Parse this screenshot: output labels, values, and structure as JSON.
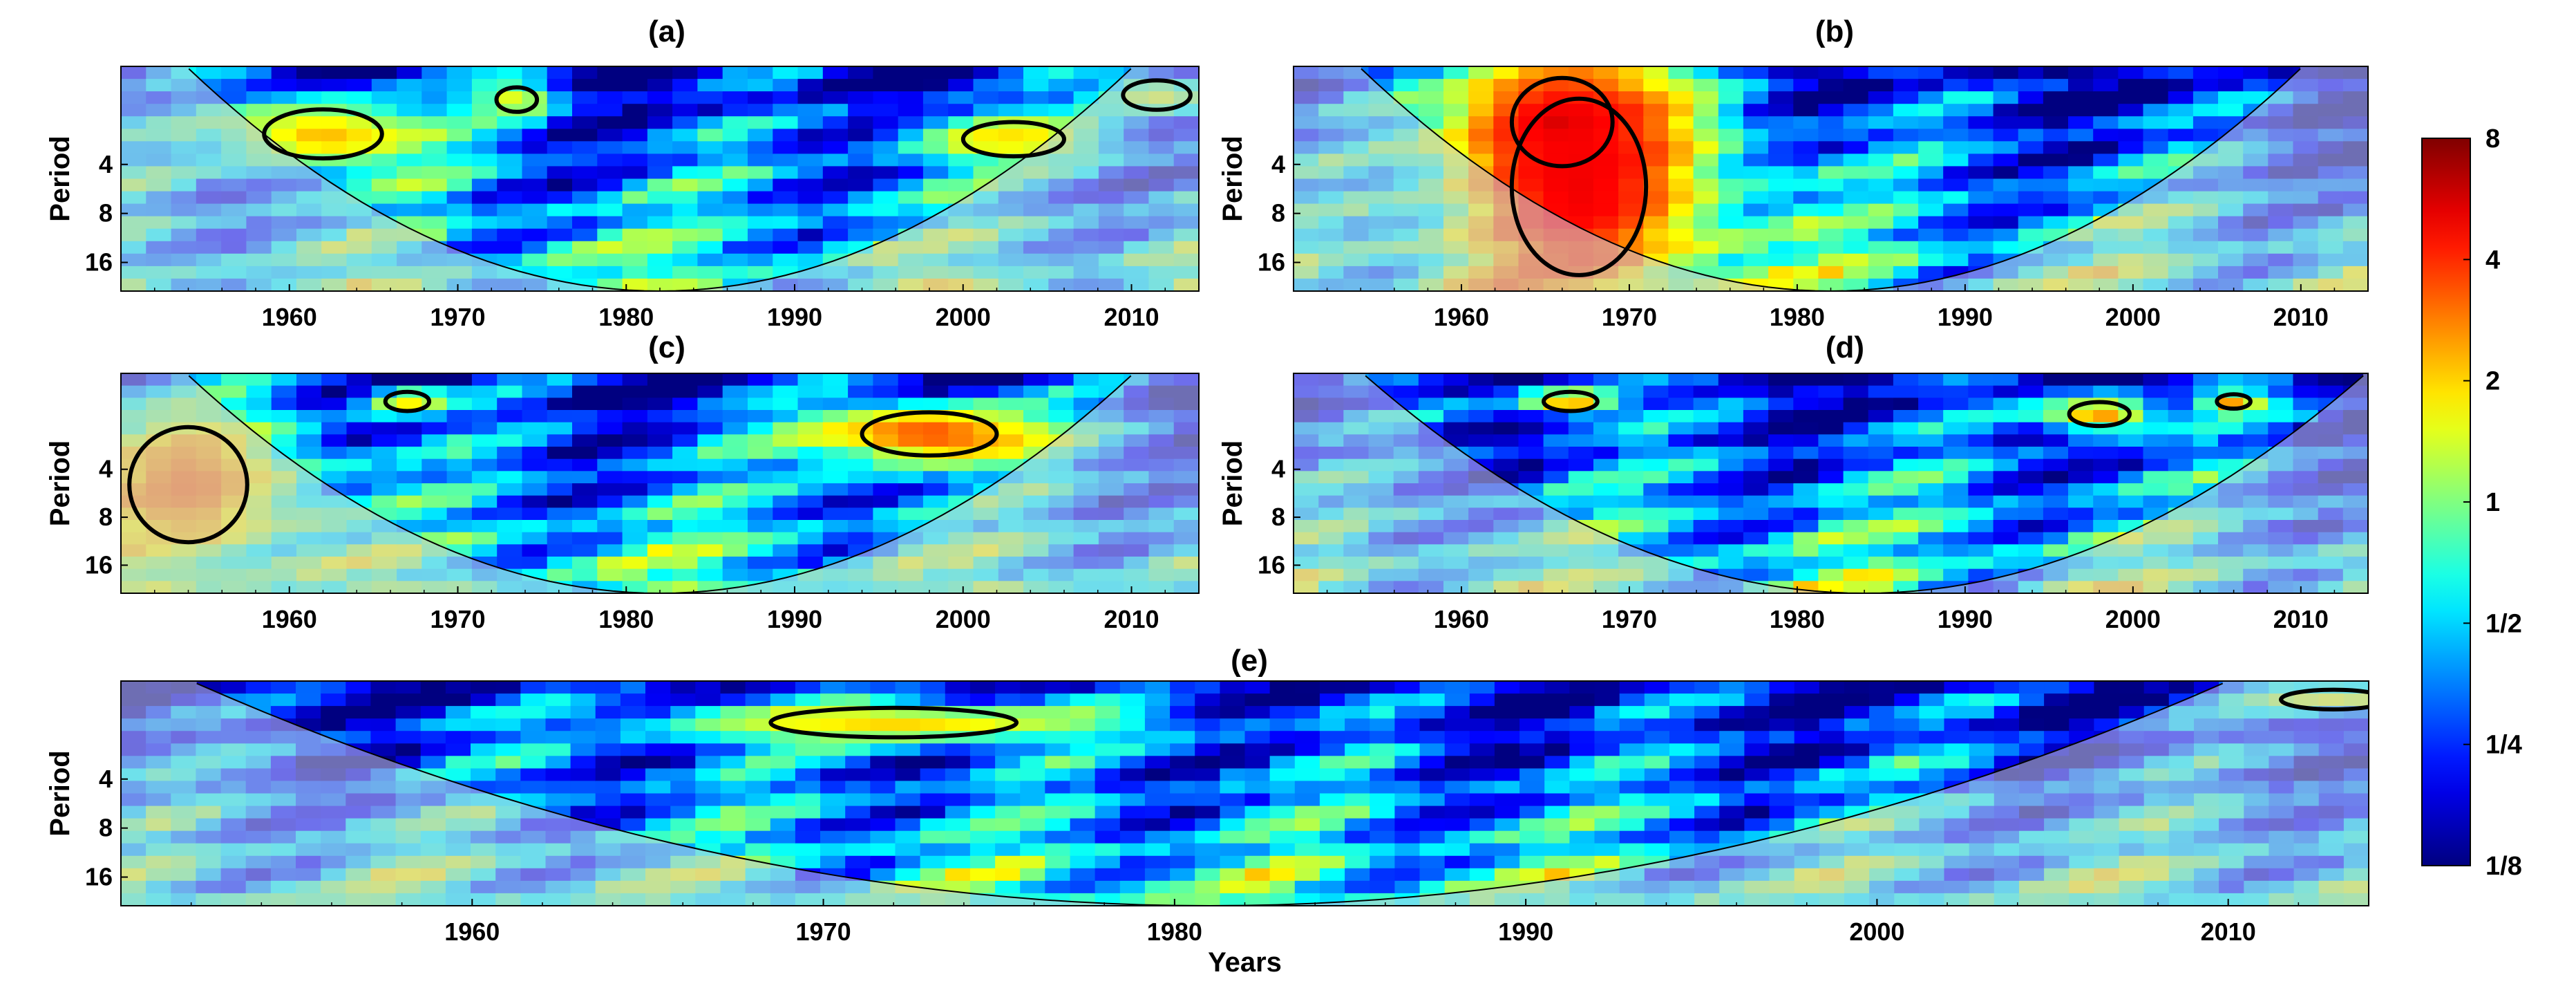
{
  "chart_data": {
    "type": "heatmap",
    "description_kind": "wavelet power spectra",
    "colormap": "jet",
    "x_range": [
      1950,
      2014
    ],
    "period_range": [
      1,
      24
    ],
    "panels": [
      {
        "id": "a",
        "title": "(a)",
        "ylabel": "Period",
        "xticks": [
          "1960",
          "1970",
          "1980",
          "1990",
          "2000",
          "2010"
        ],
        "yticks": [
          "4",
          "8",
          "16"
        ],
        "coi_center": 1982,
        "significant_regions": [
          {
            "year": 1962,
            "period": 2.6,
            "half_width": 3.5,
            "half_height": 0.5,
            "power": 2.2
          },
          {
            "year": 1973.5,
            "period": 1.6,
            "half_width": 1.2,
            "half_height": 0.25,
            "power": 1.6
          },
          {
            "year": 2003,
            "period": 2.8,
            "half_width": 3.0,
            "half_height": 0.35,
            "power": 1.9
          },
          {
            "year": 2011.5,
            "period": 1.5,
            "half_width": 2.0,
            "half_height": 0.3,
            "power": 1.5
          }
        ]
      },
      {
        "id": "b",
        "title": "(b)",
        "ylabel": "Period",
        "xticks": [
          "1960",
          "1970",
          "1980",
          "1990",
          "2000",
          "2010"
        ],
        "yticks": [
          "4",
          "8",
          "16"
        ],
        "coi_center": 1982,
        "significant_regions": [
          {
            "year": 1966,
            "period": 2.2,
            "half_width": 3.0,
            "half_height": 0.9,
            "power": 5.5
          },
          {
            "year": 1967,
            "period": 5.5,
            "half_width": 4.0,
            "half_height": 1.8,
            "power": 5.0
          }
        ]
      },
      {
        "id": "c",
        "title": "(c)",
        "ylabel": "Period",
        "xticks": [
          "1960",
          "1970",
          "1980",
          "1990",
          "2000",
          "2010"
        ],
        "yticks": [
          "4",
          "8",
          "16"
        ],
        "coi_center": 1982,
        "significant_regions": [
          {
            "year": 1954,
            "period": 5.0,
            "half_width": 3.5,
            "half_height": 1.2,
            "power": 3.0
          },
          {
            "year": 1967,
            "period": 1.5,
            "half_width": 1.3,
            "half_height": 0.2,
            "power": 1.8
          },
          {
            "year": 1998,
            "period": 2.4,
            "half_width": 4.0,
            "half_height": 0.45,
            "power": 3.5
          }
        ]
      },
      {
        "id": "d",
        "title": "(d)",
        "ylabel": "Period",
        "xticks": [
          "1960",
          "1970",
          "1980",
          "1990",
          "2000",
          "2010"
        ],
        "yticks": [
          "4",
          "8",
          "16"
        ],
        "coi_center": 1984,
        "significant_regions": [
          {
            "year": 1966.5,
            "period": 1.5,
            "half_width": 1.6,
            "half_height": 0.2,
            "power": 2.5
          },
          {
            "year": 1998,
            "period": 1.8,
            "half_width": 1.8,
            "half_height": 0.25,
            "power": 2.6
          },
          {
            "year": 2006,
            "period": 1.5,
            "half_width": 1.0,
            "half_height": 0.15,
            "power": 2.8
          }
        ]
      },
      {
        "id": "e",
        "title": "(e)",
        "ylabel": "Period",
        "xlabel": "Years",
        "xticks": [
          "1960",
          "1970",
          "1980",
          "1990",
          "2000",
          "2010"
        ],
        "yticks": [
          "4",
          "8",
          "16"
        ],
        "coi_center": 1981,
        "significant_regions": [
          {
            "year": 1972,
            "period": 1.8,
            "half_width": 3.5,
            "half_height": 0.3,
            "power": 2.0
          },
          {
            "year": 2013,
            "period": 1.3,
            "half_width": 1.5,
            "half_height": 0.2,
            "power": 1.5
          }
        ]
      }
    ],
    "colorbar": {
      "labels": [
        "8",
        "4",
        "2",
        "1",
        "1/2",
        "1/4",
        "1/8"
      ],
      "range": [
        0.125,
        8
      ]
    }
  }
}
